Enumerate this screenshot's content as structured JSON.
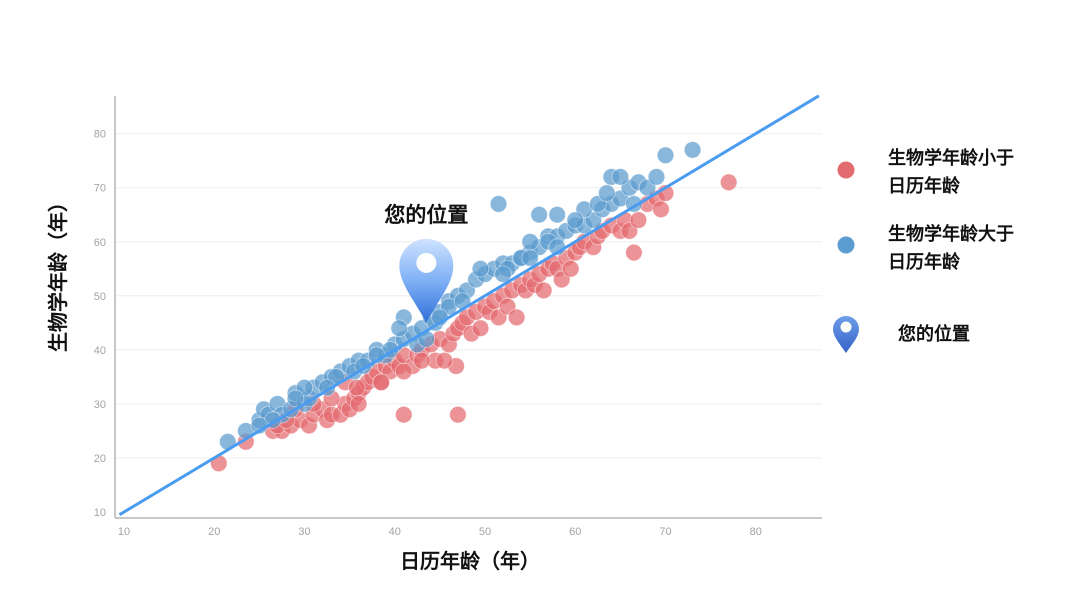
{
  "chart_data": {
    "type": "scatter",
    "xlabel": "日历年龄（年）",
    "ylabel": "生物学年龄（年）",
    "xlim": [
      10,
      87
    ],
    "ylim": [
      9,
      87
    ],
    "x_ticks": [
      10,
      20,
      30,
      40,
      50,
      60,
      70,
      80
    ],
    "y_ticks": [
      10,
      20,
      30,
      40,
      50,
      60,
      70,
      80
    ],
    "grid": "horizontal",
    "legend_position": "right",
    "reference_line": {
      "from": [
        9.5,
        9.5
      ],
      "to": [
        87,
        87
      ],
      "color": "#4a9cf0"
    },
    "marker": {
      "label": "您的位置",
      "x": 43.5,
      "y": 45,
      "color": "#3f7fe0"
    },
    "series": [
      {
        "name": "生物学年龄小于日历年龄",
        "color": "#e36a6f",
        "points": [
          [
            20.5,
            19
          ],
          [
            23.5,
            23
          ],
          [
            26.5,
            25
          ],
          [
            27.5,
            25
          ],
          [
            27,
            26
          ],
          [
            28.5,
            26
          ],
          [
            29.5,
            27
          ],
          [
            30.5,
            26
          ],
          [
            31,
            28
          ],
          [
            32,
            29
          ],
          [
            32.5,
            27
          ],
          [
            33,
            28
          ],
          [
            34,
            28
          ],
          [
            34.5,
            30
          ],
          [
            35,
            29
          ],
          [
            35.5,
            31
          ],
          [
            36,
            32
          ],
          [
            36.5,
            33
          ],
          [
            37,
            34
          ],
          [
            37.5,
            35
          ],
          [
            38,
            36
          ],
          [
            38.5,
            34
          ],
          [
            39,
            37
          ],
          [
            39.5,
            36
          ],
          [
            40,
            38
          ],
          [
            40.5,
            37
          ],
          [
            41,
            39
          ],
          [
            42,
            37
          ],
          [
            42.5,
            39
          ],
          [
            43,
            40
          ],
          [
            44,
            41
          ],
          [
            44.5,
            38
          ],
          [
            45,
            42
          ],
          [
            46,
            41
          ],
          [
            46.5,
            43
          ],
          [
            47,
            44
          ],
          [
            47.5,
            45
          ],
          [
            48,
            46
          ],
          [
            48.5,
            43
          ],
          [
            49,
            47
          ],
          [
            49.5,
            44
          ],
          [
            50,
            48
          ],
          [
            50.5,
            47
          ],
          [
            51,
            49
          ],
          [
            51.5,
            46
          ],
          [
            52,
            50
          ],
          [
            52.5,
            48
          ],
          [
            53,
            51
          ],
          [
            53.5,
            46
          ],
          [
            54,
            52
          ],
          [
            54.5,
            51
          ],
          [
            55,
            53
          ],
          [
            55.5,
            52
          ],
          [
            56,
            54
          ],
          [
            56.5,
            51
          ],
          [
            57,
            55
          ],
          [
            57.5,
            56
          ],
          [
            58,
            55
          ],
          [
            58.5,
            53
          ],
          [
            59,
            57
          ],
          [
            59.5,
            55
          ],
          [
            60,
            58
          ],
          [
            60.5,
            59
          ],
          [
            61,
            60
          ],
          [
            62,
            59
          ],
          [
            62.5,
            61
          ],
          [
            63,
            62
          ],
          [
            64,
            63
          ],
          [
            65,
            62
          ],
          [
            65.5,
            64
          ],
          [
            66,
            62
          ],
          [
            66.5,
            58
          ],
          [
            67,
            64
          ],
          [
            68,
            67
          ],
          [
            69,
            68
          ],
          [
            70,
            69
          ],
          [
            69.5,
            66
          ],
          [
            77,
            71
          ],
          [
            41,
            28
          ],
          [
            47,
            28
          ],
          [
            46.8,
            37
          ],
          [
            45.5,
            38
          ],
          [
            43,
            38
          ],
          [
            34.5,
            34
          ],
          [
            35.8,
            33
          ],
          [
            38.5,
            34
          ],
          [
            41,
            36
          ],
          [
            31,
            30
          ],
          [
            33,
            31
          ],
          [
            36,
            30
          ],
          [
            29,
            29
          ],
          [
            28,
            27
          ]
        ]
      },
      {
        "name": "生物学年龄大于日历年龄",
        "color": "#5b9bcf",
        "points": [
          [
            21.5,
            23
          ],
          [
            23.5,
            25
          ],
          [
            25,
            27
          ],
          [
            25.5,
            29
          ],
          [
            26,
            28
          ],
          [
            27,
            30
          ],
          [
            27.5,
            28
          ],
          [
            28.5,
            29
          ],
          [
            29,
            32
          ],
          [
            30,
            30
          ],
          [
            30.5,
            31
          ],
          [
            31,
            33
          ],
          [
            32,
            34
          ],
          [
            33,
            35
          ],
          [
            34,
            36
          ],
          [
            35,
            37
          ],
          [
            36,
            38
          ],
          [
            37,
            38
          ],
          [
            38,
            40
          ],
          [
            39,
            39
          ],
          [
            40,
            41
          ],
          [
            41,
            42
          ],
          [
            42,
            43
          ],
          [
            43,
            44
          ],
          [
            44,
            46
          ],
          [
            45,
            47
          ],
          [
            46,
            49
          ],
          [
            47,
            50
          ],
          [
            48,
            51
          ],
          [
            49,
            53
          ],
          [
            50,
            54
          ],
          [
            51,
            55
          ],
          [
            52,
            56
          ],
          [
            53,
            56
          ],
          [
            54,
            57
          ],
          [
            55,
            58
          ],
          [
            56,
            59
          ],
          [
            57,
            61
          ],
          [
            58,
            61
          ],
          [
            59,
            62
          ],
          [
            60,
            63
          ],
          [
            61,
            63
          ],
          [
            62,
            64
          ],
          [
            63,
            66
          ],
          [
            64,
            67
          ],
          [
            65,
            68
          ],
          [
            66,
            70
          ],
          [
            67,
            71
          ],
          [
            68,
            70
          ],
          [
            69,
            72
          ],
          [
            70,
            76
          ],
          [
            73,
            77
          ],
          [
            51.5,
            67
          ],
          [
            41,
            46
          ],
          [
            40.5,
            44
          ],
          [
            44.5,
            45
          ],
          [
            46,
            48
          ],
          [
            52.5,
            55
          ],
          [
            55,
            60
          ],
          [
            56,
            65
          ],
          [
            58,
            65
          ],
          [
            61,
            66
          ],
          [
            64,
            72
          ],
          [
            65,
            72
          ],
          [
            62.5,
            67
          ],
          [
            60,
            64
          ],
          [
            57,
            60
          ],
          [
            54,
            57
          ],
          [
            49.5,
            55
          ],
          [
            47.5,
            49
          ],
          [
            45,
            46
          ],
          [
            42.5,
            41
          ],
          [
            39.5,
            40
          ],
          [
            38,
            39
          ],
          [
            35.5,
            36
          ],
          [
            33.5,
            35
          ],
          [
            30,
            33
          ],
          [
            29,
            31
          ],
          [
            26.5,
            27
          ],
          [
            25,
            26
          ],
          [
            32.5,
            33
          ],
          [
            36.5,
            37
          ],
          [
            43.5,
            42
          ],
          [
            52,
            54
          ],
          [
            55,
            57
          ],
          [
            58,
            59
          ],
          [
            63.5,
            69
          ],
          [
            66.5,
            67
          ]
        ]
      }
    ]
  },
  "legend": {
    "items": [
      {
        "line1": "生物学年龄小于",
        "line2": "日历年龄",
        "color": "#e36a6f"
      },
      {
        "line1": "生物学年龄大于",
        "line2": "日历年龄",
        "color": "#5b9bcf"
      },
      {
        "label": "您的位置"
      }
    ]
  }
}
